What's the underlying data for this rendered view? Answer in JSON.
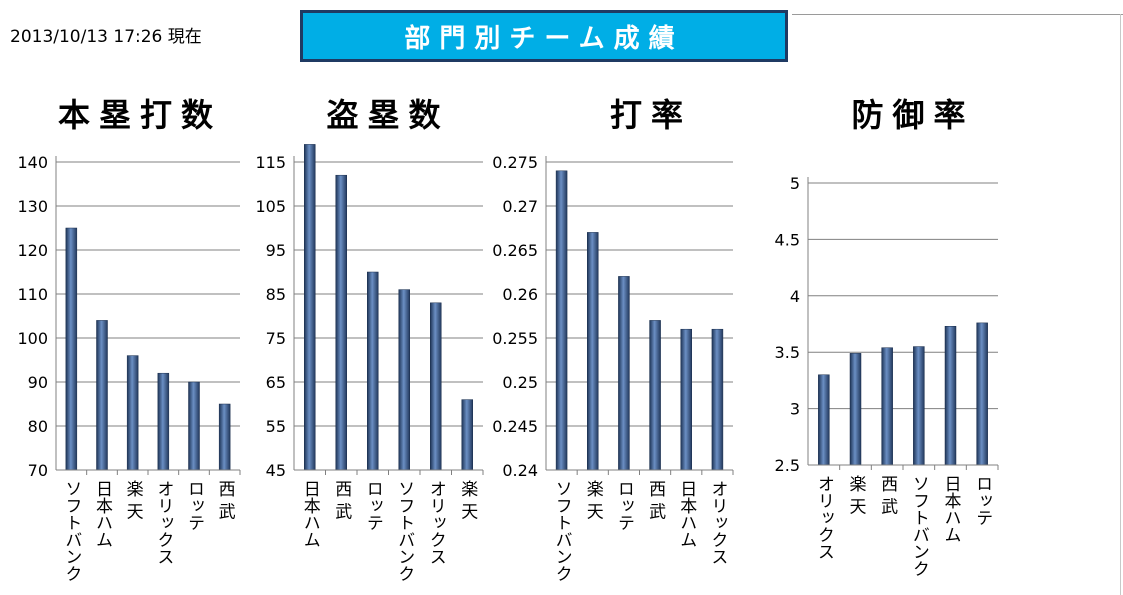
{
  "header": {
    "timestamp": "2013/10/13 17:26 現在",
    "title": "部門別チーム成績"
  },
  "chart_data": [
    {
      "type": "bar",
      "title": "本塁打数",
      "categories": [
        "ソフトバンク",
        "日本ハム",
        "楽 天",
        "オリックス",
        "ロッテ",
        "西 武"
      ],
      "values": [
        125,
        104,
        96,
        92,
        90,
        85
      ],
      "ylim": [
        70,
        140
      ],
      "yticks": [
        "70",
        "80",
        "90",
        "100",
        "110",
        "120",
        "130",
        "140"
      ],
      "grid": true
    },
    {
      "type": "bar",
      "title": "盗塁数",
      "categories": [
        "日本ハム",
        "西 武",
        "ロッテ",
        "ソフトバンク",
        "オリックス",
        "楽 天"
      ],
      "values": [
        119,
        112,
        90,
        86,
        83,
        61
      ],
      "ylim": [
        45,
        115
      ],
      "yticks": [
        "45",
        "55",
        "65",
        "75",
        "85",
        "95",
        "105",
        "115"
      ],
      "grid": true
    },
    {
      "type": "bar",
      "title": "打率",
      "categories": [
        "ソフトバンク",
        "楽 天",
        "ロッテ",
        "西 武",
        "日本ハム",
        "オリックス"
      ],
      "values": [
        0.274,
        0.267,
        0.262,
        0.257,
        0.256,
        0.256
      ],
      "ylim": [
        0.24,
        0.275
      ],
      "yticks": [
        "0.24",
        "0.245",
        "0.25",
        "0.255",
        "0.26",
        "0.265",
        "0.27",
        "0.275"
      ],
      "grid": true
    },
    {
      "type": "bar",
      "title": "防御率",
      "categories": [
        "オリックス",
        "楽 天",
        "西 武",
        "ソフトバンク",
        "日本ハム",
        "ロッテ"
      ],
      "values": [
        3.3,
        3.49,
        3.54,
        3.55,
        3.73,
        3.76
      ],
      "ylim": [
        2.5,
        5
      ],
      "yticks": [
        "2.5",
        "3",
        "3.5",
        "4",
        "4.5",
        "5"
      ],
      "grid": true
    }
  ],
  "colors": {
    "bar": "#2f4f7f",
    "bar_highlight": "#6b8fc4",
    "grid": "#7f7f7f",
    "banner": "#00aee6"
  }
}
